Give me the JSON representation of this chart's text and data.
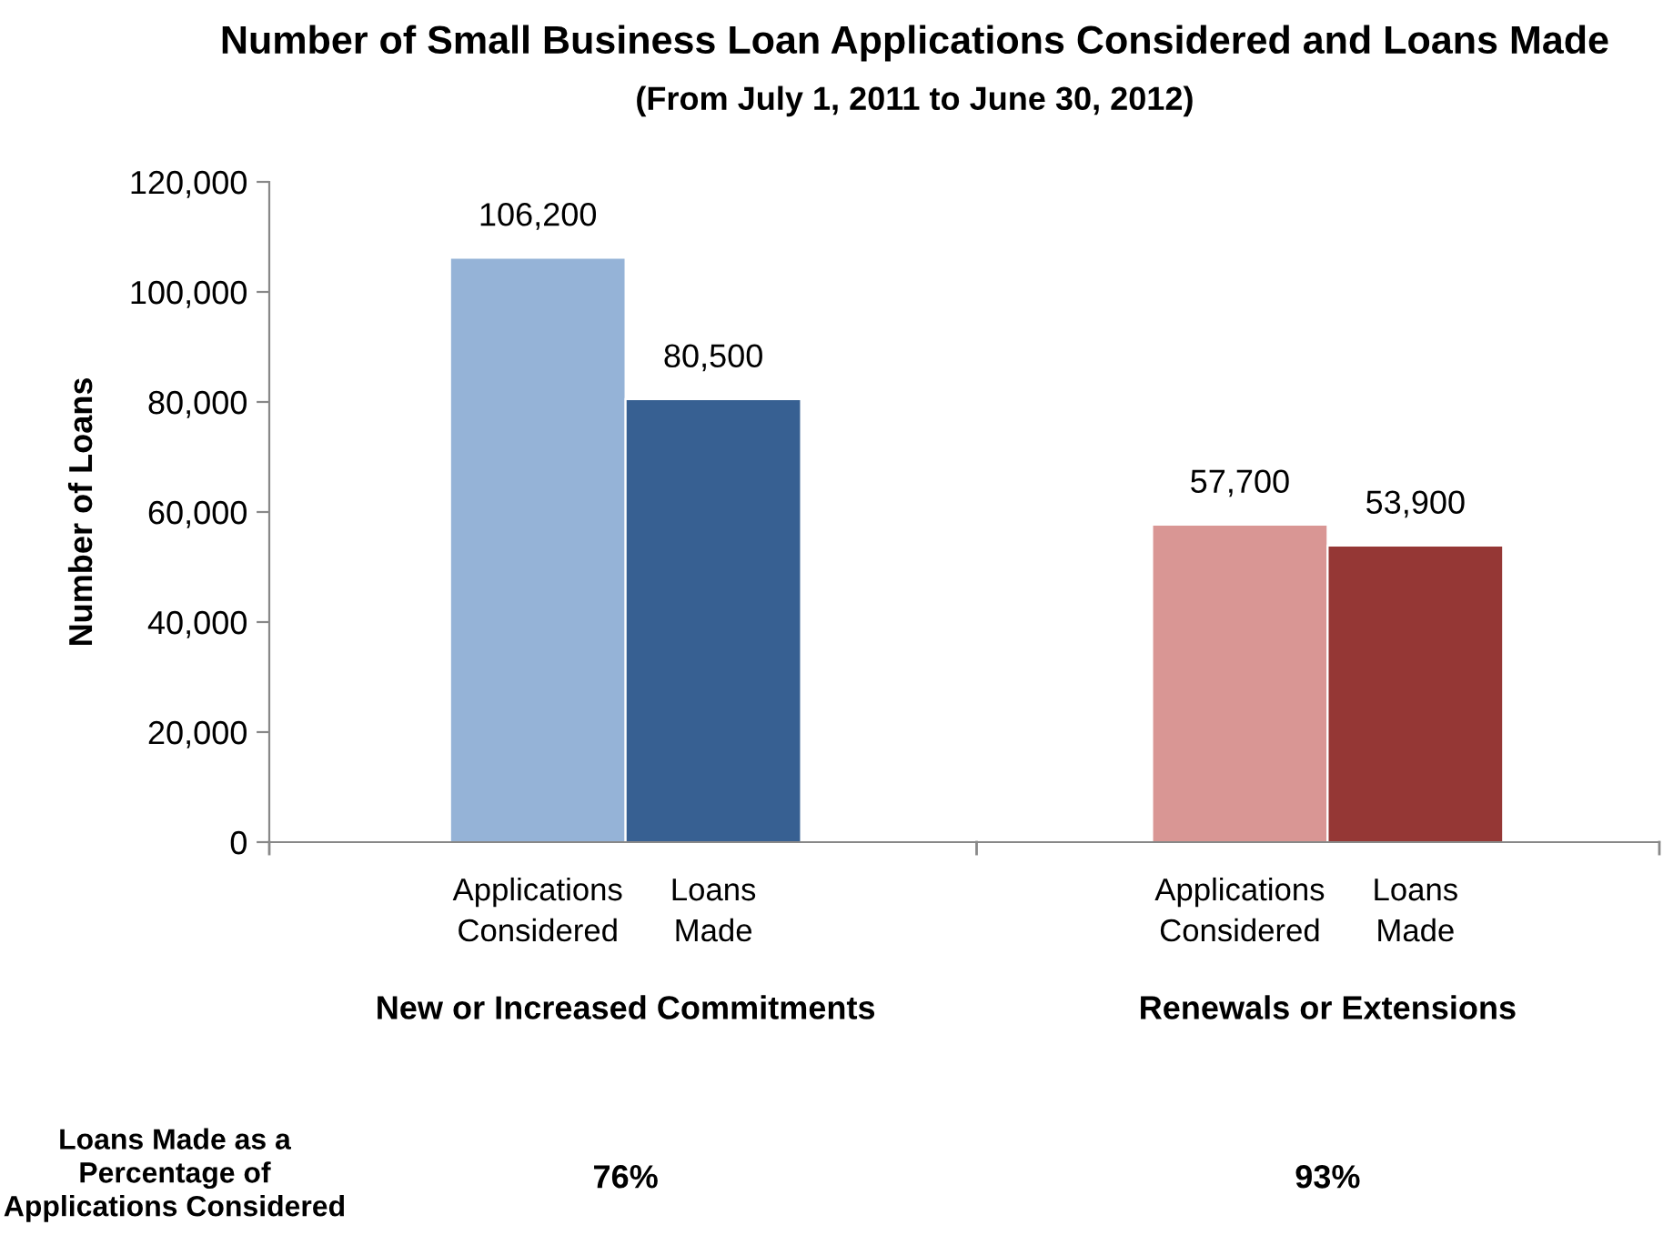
{
  "chart_data": {
    "type": "bar",
    "title": "Number of Small Business Loan Applications Considered and Loans Made",
    "subtitle": "(From July 1, 2011 to June 30, 2012)",
    "ylabel": "Number of Loans",
    "categories": [
      "Applications\nConsidered",
      "Loans\nMade",
      null,
      null,
      "Applications\nConsidered",
      "Loans\nMade"
    ],
    "values": [
      106200,
      80500,
      null,
      null,
      57700,
      53900
    ],
    "colors": [
      "#95b3d7",
      "#376092",
      null,
      null,
      "#d99694",
      "#953735"
    ],
    "value_labels": [
      "106,200",
      "80,500",
      null,
      null,
      "57,700",
      "53,900"
    ],
    "ylim": [
      0,
      120000
    ],
    "yticks": [
      0,
      {
        "value": 20000,
        "label": "20,000"
      },
      {
        "value": 40000,
        "label": "40,000"
      },
      {
        "value": 60000,
        "label": "60,000"
      },
      {
        "value": 80000,
        "label": "80,000"
      },
      {
        "value": 100000,
        "label": "100,000"
      },
      {
        "value": 120000,
        "label": "120,000"
      }
    ],
    "annotations": [
      "New or Increased Commitments",
      "Renewals or Extensions",
      "Loans Made as a\nPercentage of\nApplications Considered",
      "76%",
      "93%"
    ],
    "grid": false,
    "legend": false
  }
}
